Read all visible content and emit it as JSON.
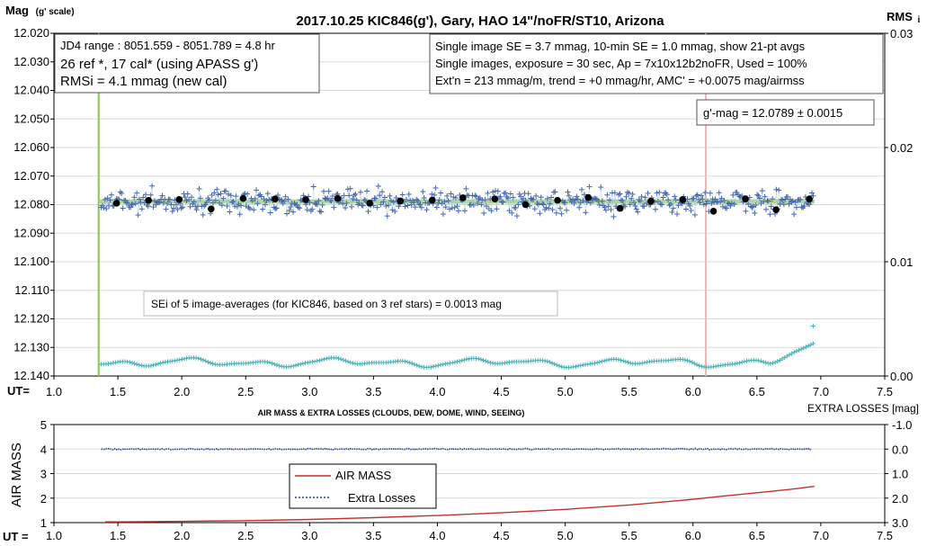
{
  "chart_data": [
    {
      "type": "scatter",
      "title": "2017.10.25  KIC846(g'),  Gary, HAO  14\"/noFR/ST10,  Arizona",
      "ylabel": "Mag",
      "ylabel_suffix": "(g' scale)",
      "y2label": "RMS",
      "y2label_suffix": "i",
      "xlabel": "UT=",
      "xlim": [
        1.0,
        7.5
      ],
      "ylim": [
        12.02,
        12.14
      ],
      "y_inverted": true,
      "y2lim": [
        0.0,
        0.03
      ],
      "x_ticks": [
        "1.0",
        "1.5",
        "2.0",
        "2.5",
        "3.0",
        "3.5",
        "4.0",
        "4.5",
        "5.0",
        "5.5",
        "6.0",
        "6.5",
        "7.0",
        "7.5"
      ],
      "y_ticks": [
        "12.020",
        "12.030",
        "12.040",
        "12.050",
        "12.060",
        "12.070",
        "12.080",
        "12.090",
        "12.100",
        "12.110",
        "12.120",
        "12.130",
        "12.140"
      ],
      "y2_ticks": [
        "0.03",
        "0.02",
        "0.01",
        "0.00"
      ],
      "grid": true,
      "annotations": {
        "info_left": [
          "JD4 range : 8051.559 - 8051.789 =  4.8  hr",
          "26 ref *, 17 cal* (using APASS g')",
          "RMSi = 4.1 mmag (new cal)"
        ],
        "info_right": [
          "Single image SE = 3.7 mmag, 10-min SE = 1.0 mmag, show  21-pt avgs",
          "Single images, exposure = 30 sec, Ap = 7x10x12b2noFR,  Used = 100%",
          "Ext'n = 213 mmag/m, trend =  +0 mmag/hr, AMC' = +0.0075 mag/airmss"
        ],
        "gmag": "g'-mag = 12.0789 ± 0.0015",
        "sei": "SEi of 5 image-averages (for KIC846, based on 3 ref stars) = 0.0013  mag"
      },
      "vertical_markers": [
        {
          "x": 1.35,
          "color": "#8cc63f"
        },
        {
          "x": 6.1,
          "color": "#f2b6b6"
        }
      ],
      "fit_level": 12.0789,
      "series": [
        {
          "kind": "averages",
          "color": "#000000",
          "x": [
            1.49,
            1.74,
            1.98,
            2.23,
            2.48,
            2.73,
            2.97,
            3.22,
            3.47,
            3.71,
            3.96,
            4.2,
            4.45,
            4.69,
            4.94,
            5.18,
            5.43,
            5.67,
            5.92,
            6.16,
            6.41,
            6.65,
            6.91
          ],
          "y": [
            12.0795,
            12.0785,
            12.0782,
            12.0815,
            12.0778,
            12.078,
            12.0783,
            12.0778,
            12.0795,
            12.0787,
            12.0784,
            12.0776,
            12.078,
            12.08,
            12.0785,
            12.0775,
            12.0813,
            12.0788,
            12.0783,
            12.0823,
            12.078,
            12.0818,
            12.078
          ]
        },
        {
          "kind": "individual",
          "color": "#3a5fa6",
          "x_range": [
            1.37,
            6.94
          ],
          "center": 12.0789,
          "scatter_sd": 0.0041
        },
        {
          "kind": "rms",
          "color": "#4ab0b8",
          "x_range": [
            1.37,
            6.94
          ],
          "level": 12.1353,
          "extra_points": [
            {
              "x": 6.94,
              "y": 12.1225
            }
          ]
        }
      ]
    },
    {
      "type": "line",
      "title": "AIR MASS & EXTRA LOSSES (CLOUDS, DEW, DOME, WIND, SEEING)",
      "ylabel": "AIR MASS",
      "y2label": "EXTRA LOSSES [mag]",
      "xlabel": "UT =",
      "xlim": [
        1.0,
        7.5
      ],
      "ylim": [
        1,
        5
      ],
      "y2lim": [
        3.0,
        -1.0
      ],
      "x_ticks": [
        "1.0",
        "1.5",
        "2.0",
        "2.5",
        "3.0",
        "3.5",
        "4.0",
        "4.5",
        "5.0",
        "5.5",
        "6.0",
        "6.5",
        "7.0",
        "7.5"
      ],
      "y_ticks": [
        "5",
        "4",
        "3",
        "2",
        "1"
      ],
      "y2_ticks": [
        "-1.0",
        "0.0",
        "1.0",
        "2.0",
        "3.0"
      ],
      "grid": true,
      "legend_position": "center",
      "series": [
        {
          "name": "AIR MASS",
          "color": "#c0322b",
          "x": [
            1.4,
            1.75,
            2.0,
            2.5,
            3.0,
            3.5,
            4.0,
            4.5,
            5.0,
            5.5,
            6.0,
            6.25,
            6.5,
            6.75,
            6.95
          ],
          "y": [
            1.03,
            1.04,
            1.05,
            1.08,
            1.13,
            1.2,
            1.29,
            1.4,
            1.54,
            1.72,
            1.95,
            2.09,
            2.22,
            2.35,
            2.48
          ]
        },
        {
          "name": "Extra Losses",
          "color": "#2340a8",
          "x_range": [
            1.37,
            6.94
          ],
          "y2_level": 0.0
        }
      ]
    }
  ]
}
